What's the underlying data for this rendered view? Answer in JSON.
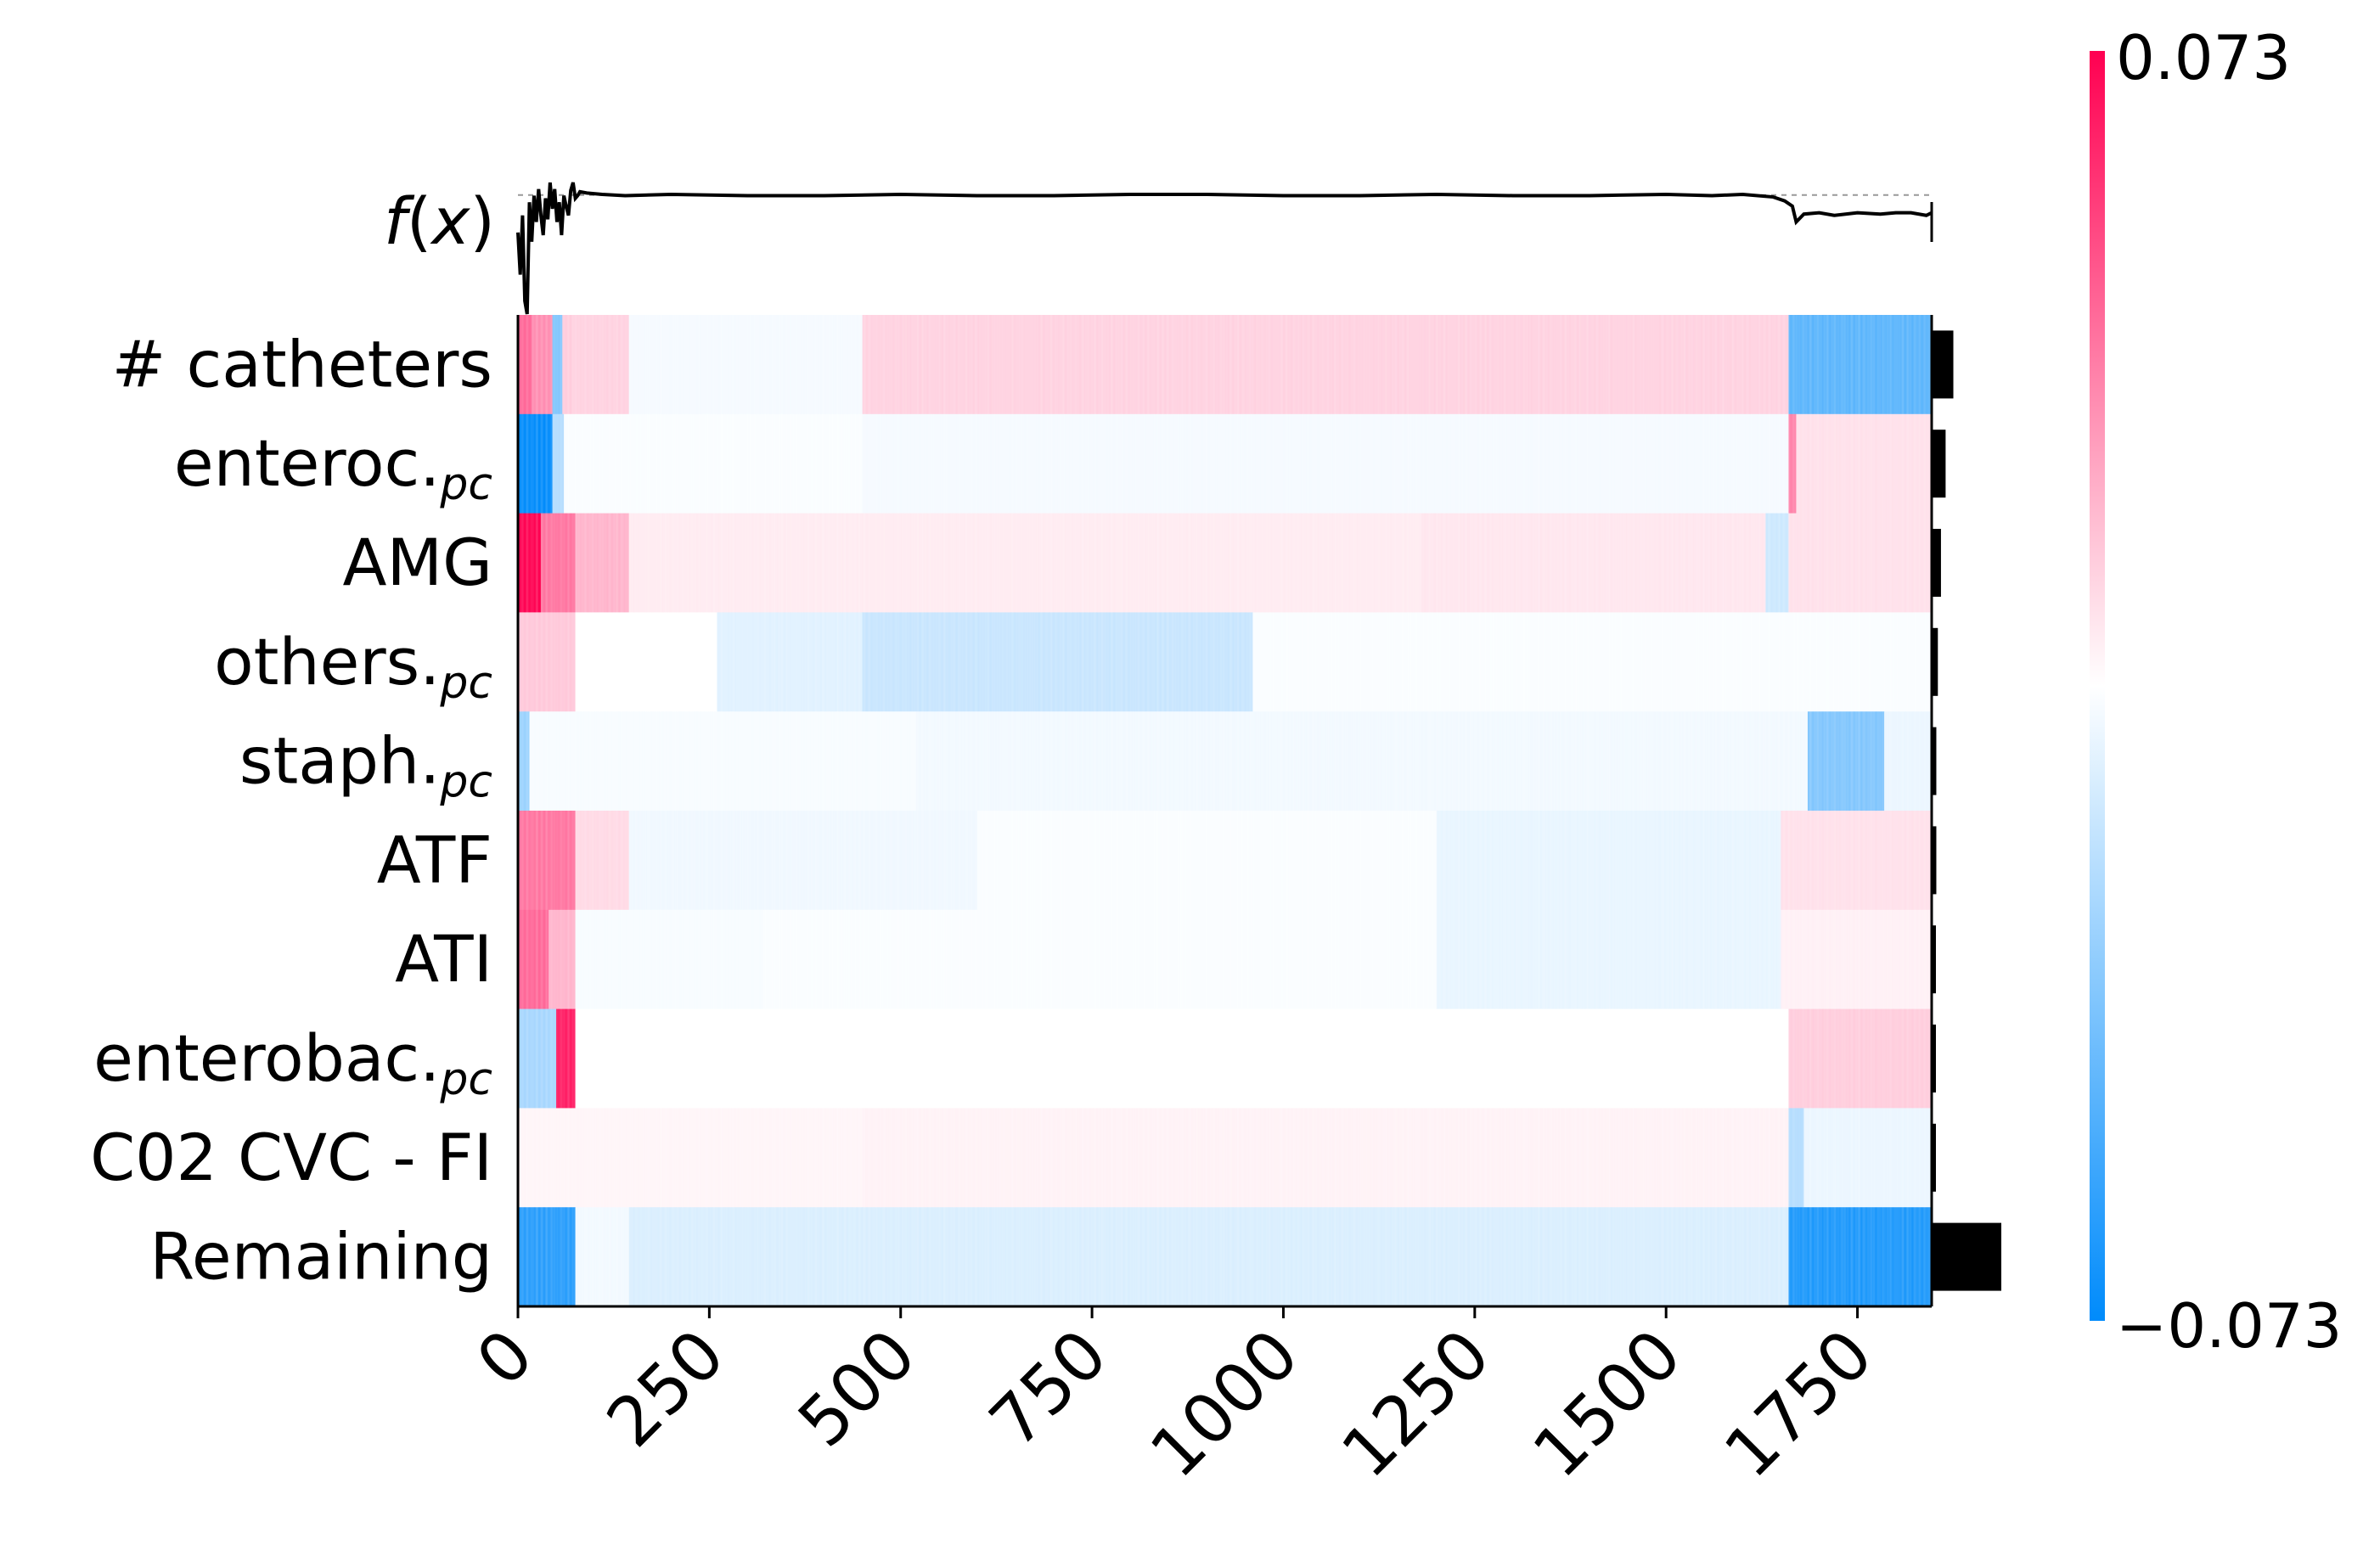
{
  "chart_data": {
    "type": "heatmap",
    "title": "",
    "fx_label": {
      "f": "f",
      "open": "(",
      "x": "x",
      "close": ")"
    },
    "xlabel": "",
    "x_range": [
      0,
      1847
    ],
    "x_ticks": [
      0,
      250,
      500,
      750,
      1000,
      1250,
      1500,
      1750
    ],
    "x_tick_labels": [
      "0",
      "250",
      "500",
      "750",
      "1000",
      "1250",
      "1500",
      "1750"
    ],
    "features": [
      {
        "base": "# catheters",
        "sub": "",
        "importance": 0.014
      },
      {
        "base": "enteroc.",
        "sub": "pc",
        "importance": 0.009
      },
      {
        "base": "AMG",
        "sub": "",
        "importance": 0.006
      },
      {
        "base": "others.",
        "sub": "pc",
        "importance": 0.004
      },
      {
        "base": "staph.",
        "sub": "pc",
        "importance": 0.003
      },
      {
        "base": "ATF",
        "sub": "",
        "importance": 0.003
      },
      {
        "base": "ATI",
        "sub": "",
        "importance": 0.002
      },
      {
        "base": "enterobac.",
        "sub": "pc",
        "importance": 0.0015
      },
      {
        "base": "C02 CVC - FI",
        "sub": "",
        "importance": 0.0012
      },
      {
        "base": "Remaining",
        "sub": "",
        "importance": 0.045
      }
    ],
    "segments": [
      [
        [
          0,
          18,
          0.6
        ],
        [
          18,
          45,
          0.45
        ],
        [
          45,
          58,
          -0.5
        ],
        [
          58,
          70,
          0.2
        ],
        [
          70,
          145,
          0.18
        ],
        [
          145,
          450,
          -0.04
        ],
        [
          450,
          1660,
          0.18
        ],
        [
          1660,
          1847,
          -0.65
        ]
      ],
      [
        [
          0,
          45,
          -1.0
        ],
        [
          45,
          60,
          -0.3
        ],
        [
          60,
          450,
          -0.02
        ],
        [
          450,
          1660,
          -0.04
        ],
        [
          1660,
          1670,
          0.5
        ],
        [
          1670,
          1847,
          0.12
        ]
      ],
      [
        [
          0,
          30,
          1.0
        ],
        [
          30,
          75,
          0.55
        ],
        [
          75,
          145,
          0.3
        ],
        [
          145,
          1180,
          0.08
        ],
        [
          1180,
          1630,
          0.1
        ],
        [
          1630,
          1660,
          -0.2
        ],
        [
          1660,
          1847,
          0.12
        ]
      ],
      [
        [
          0,
          75,
          0.22
        ],
        [
          75,
          260,
          0.0
        ],
        [
          260,
          450,
          -0.12
        ],
        [
          450,
          960,
          -0.22
        ],
        [
          960,
          1847,
          -0.02
        ]
      ],
      [
        [
          0,
          15,
          -0.4
        ],
        [
          15,
          520,
          -0.03
        ],
        [
          520,
          1685,
          -0.05
        ],
        [
          1685,
          1785,
          -0.5
        ],
        [
          1785,
          1847,
          -0.08
        ]
      ],
      [
        [
          0,
          75,
          0.55
        ],
        [
          75,
          145,
          0.15
        ],
        [
          145,
          600,
          -0.06
        ],
        [
          600,
          1200,
          -0.02
        ],
        [
          1200,
          1650,
          -0.09
        ],
        [
          1650,
          1847,
          0.12
        ]
      ],
      [
        [
          0,
          40,
          0.6
        ],
        [
          40,
          75,
          0.3
        ],
        [
          75,
          320,
          -0.03
        ],
        [
          320,
          1200,
          -0.02
        ],
        [
          1200,
          1650,
          -0.09
        ],
        [
          1650,
          1847,
          0.06
        ]
      ],
      [
        [
          0,
          50,
          -0.35
        ],
        [
          50,
          75,
          0.9
        ],
        [
          75,
          1660,
          0.0
        ],
        [
          1660,
          1847,
          0.2
        ]
      ],
      [
        [
          0,
          450,
          0.04
        ],
        [
          450,
          1660,
          0.05
        ],
        [
          1660,
          1680,
          -0.3
        ],
        [
          1680,
          1847,
          -0.08
        ]
      ],
      [
        [
          0,
          75,
          -0.85
        ],
        [
          75,
          145,
          -0.05
        ],
        [
          145,
          1660,
          -0.15
        ],
        [
          1660,
          1847,
          -0.9
        ]
      ]
    ],
    "fx_series": {
      "x": [
        0,
        3,
        6,
        9,
        12,
        15,
        18,
        21,
        24,
        27,
        30,
        33,
        36,
        39,
        42,
        45,
        48,
        51,
        54,
        57,
        60,
        63,
        66,
        69,
        72,
        75,
        78,
        81,
        90,
        110,
        140,
        200,
        300,
        400,
        500,
        600,
        700,
        800,
        900,
        1000,
        1100,
        1200,
        1300,
        1400,
        1500,
        1560,
        1600,
        1640,
        1655,
        1665,
        1670,
        1680,
        1700,
        1720,
        1750,
        1780,
        1800,
        1820,
        1840,
        1847
      ],
      "y": [
        0.62,
        0.3,
        0.75,
        0.1,
        0.0,
        0.85,
        0.55,
        0.9,
        0.7,
        0.95,
        0.75,
        0.6,
        0.88,
        0.72,
        1.0,
        0.8,
        0.95,
        0.7,
        0.85,
        0.6,
        0.9,
        0.82,
        0.75,
        0.94,
        1.0,
        0.88,
        0.9,
        0.93,
        0.92,
        0.91,
        0.9,
        0.91,
        0.9,
        0.9,
        0.91,
        0.9,
        0.9,
        0.91,
        0.91,
        0.9,
        0.9,
        0.91,
        0.9,
        0.9,
        0.91,
        0.9,
        0.91,
        0.89,
        0.86,
        0.82,
        0.7,
        0.76,
        0.77,
        0.75,
        0.77,
        0.76,
        0.77,
        0.77,
        0.75,
        0.77
      ],
      "dashed_level": 0.905
    },
    "colorbar": {
      "min": -0.073,
      "max": 0.073,
      "min_label": "−0.073",
      "max_label": "0.073"
    },
    "colors": {
      "negative": "#008bfb",
      "positive": "#ff0051",
      "neutral": "#ffffff",
      "bar": "#000000"
    }
  }
}
